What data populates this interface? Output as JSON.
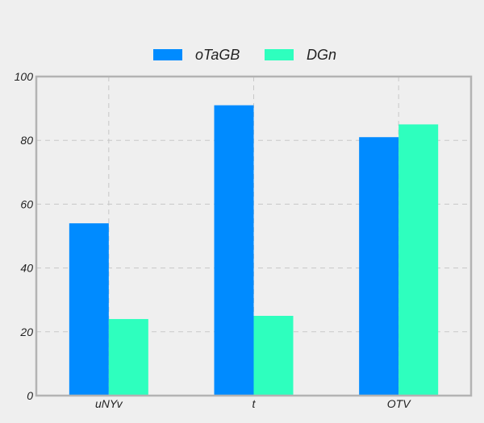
{
  "chart_data": {
    "type": "bar",
    "title": "",
    "xlabel": "",
    "ylabel": "",
    "categories": [
      "uNYv",
      "t",
      "OTV"
    ],
    "series": [
      {
        "name": "oTaGB",
        "values": [
          54,
          91,
          81
        ],
        "color": "#008bff"
      },
      {
        "name": "DGn",
        "values": [
          24,
          25,
          85
        ],
        "color": "#2effbe"
      }
    ],
    "ylim": [
      0,
      100
    ],
    "yticks": [
      0,
      20,
      40,
      60,
      80,
      100
    ],
    "grid": true,
    "legend_position": "top-center"
  }
}
